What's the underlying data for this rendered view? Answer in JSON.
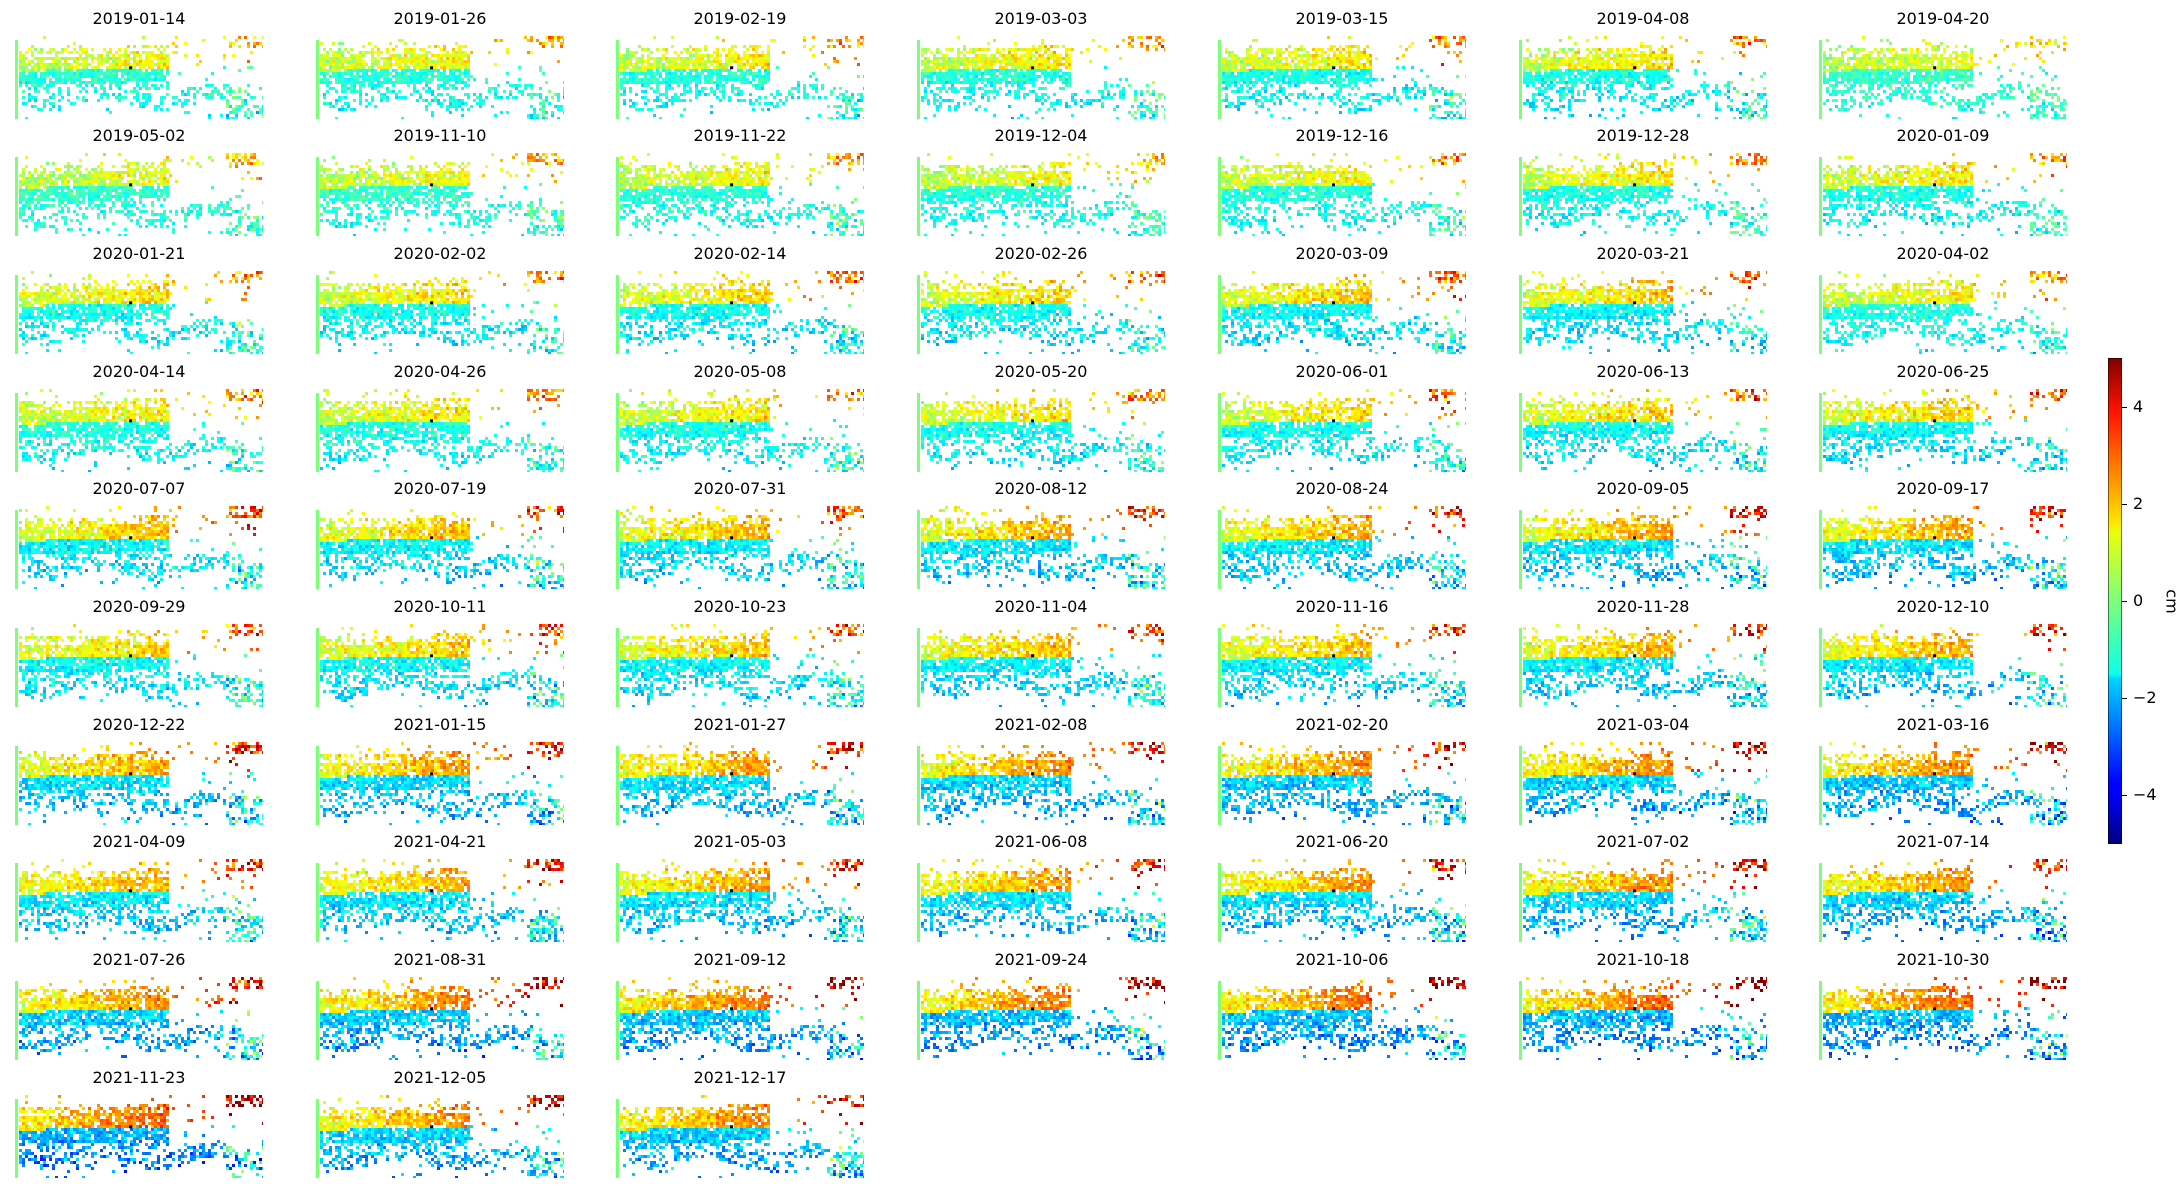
{
  "chart_data": {
    "type": "heatmap",
    "colormap": "jet",
    "panels": [
      "2019-01-14",
      "2019-01-26",
      "2019-02-19",
      "2019-03-03",
      "2019-03-15",
      "2019-04-08",
      "2019-04-20",
      "2019-05-02",
      "2019-11-10",
      "2019-11-22",
      "2019-12-04",
      "2019-12-16",
      "2019-12-28",
      "2020-01-09",
      "2020-01-21",
      "2020-02-02",
      "2020-02-14",
      "2020-02-26",
      "2020-03-09",
      "2020-03-21",
      "2020-04-02",
      "2020-04-14",
      "2020-04-26",
      "2020-05-08",
      "2020-05-20",
      "2020-06-01",
      "2020-06-13",
      "2020-06-25",
      "2020-07-07",
      "2020-07-19",
      "2020-07-31",
      "2020-08-12",
      "2020-08-24",
      "2020-09-05",
      "2020-09-17",
      "2020-09-29",
      "2020-10-11",
      "2020-10-23",
      "2020-11-04",
      "2020-11-16",
      "2020-11-28",
      "2020-12-10",
      "2020-12-22",
      "2021-01-15",
      "2021-01-27",
      "2021-02-08",
      "2021-02-20",
      "2021-03-04",
      "2021-03-16",
      "2021-04-09",
      "2021-04-21",
      "2021-05-03",
      "2021-06-08",
      "2021-06-20",
      "2021-07-02",
      "2021-07-14",
      "2021-07-26",
      "2021-08-31",
      "2021-09-12",
      "2021-09-24",
      "2021-10-06",
      "2021-10-18",
      "2021-10-30",
      "2021-11-23",
      "2021-12-05",
      "2021-12-17"
    ],
    "colorbar": {
      "label": "cm",
      "range": [
        -5,
        5
      ],
      "ticks": [
        4,
        2,
        0,
        -2,
        -4
      ],
      "tick_labels": [
        "4",
        "2",
        "0",
        "−2",
        "−4"
      ]
    }
  }
}
